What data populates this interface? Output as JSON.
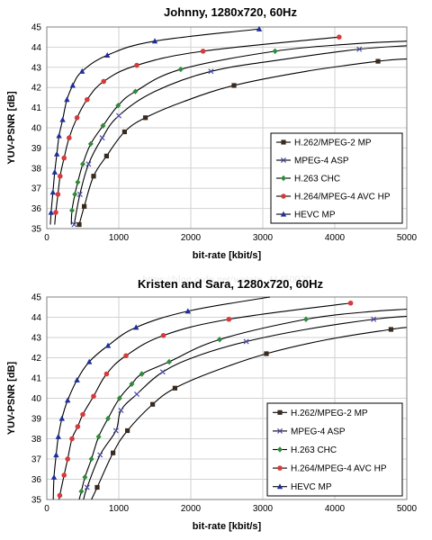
{
  "watermark": "https://blog.csdn.net/weixin_41450020",
  "chart_data": [
    {
      "type": "line",
      "title": "Johnny, 1280x720, 60Hz",
      "xlabel": "bit-rate [kbit/s]",
      "ylabel": "YUV-PSNR [dB]",
      "xlim": [
        0,
        5000
      ],
      "ylim": [
        35,
        45
      ],
      "xticks": [
        "0",
        "1000",
        "2000",
        "3000",
        "4000",
        "5000"
      ],
      "yticks": [
        "35",
        "36",
        "37",
        "38",
        "39",
        "40",
        "41",
        "42",
        "43",
        "44",
        "45"
      ],
      "grid": true,
      "legend_position": "bottom-right",
      "series": [
        {
          "name": "H.262/MPEG-2 MP",
          "color": "#3a2a1e",
          "marker": "square",
          "points": [
            [
              450,
              35.2
            ],
            [
              520,
              36.1
            ],
            [
              650,
              37.6
            ],
            [
              830,
              38.6
            ],
            [
              1080,
              39.8
            ],
            [
              1370,
              40.5
            ],
            [
              2600,
              42.1
            ],
            [
              4600,
              43.3
            ]
          ],
          "curve": [
            [
              450,
              35.2
            ],
            [
              520,
              36.1
            ],
            [
              650,
              37.6
            ],
            [
              830,
              38.6
            ],
            [
              1080,
              39.8
            ],
            [
              1370,
              40.5
            ],
            [
              1900,
              41.3
            ],
            [
              2600,
              42.1
            ],
            [
              3600,
              42.8
            ],
            [
              4600,
              43.3
            ],
            [
              5000,
              43.42
            ]
          ]
        },
        {
          "name": "MPEG-4 ASP",
          "color": "#4a4aa8",
          "marker": "x",
          "points": [
            [
              380,
              35.2
            ],
            [
              460,
              36.7
            ],
            [
              580,
              38.2
            ],
            [
              770,
              39.5
            ],
            [
              1000,
              40.6
            ],
            [
              2280,
              42.8
            ],
            [
              4340,
              43.9
            ]
          ],
          "curve": [
            [
              380,
              35.2
            ],
            [
              460,
              36.7
            ],
            [
              580,
              38.2
            ],
            [
              770,
              39.5
            ],
            [
              1000,
              40.6
            ],
            [
              1500,
              41.8
            ],
            [
              2280,
              42.8
            ],
            [
              3300,
              43.4
            ],
            [
              4340,
              43.9
            ],
            [
              5000,
              44.07
            ]
          ]
        },
        {
          "name": "H.263 CHC",
          "color": "#2f8a3a",
          "marker": "diamond",
          "points": [
            [
              350,
              35.9
            ],
            [
              390,
              36.7
            ],
            [
              430,
              37.3
            ],
            [
              500,
              38.2
            ],
            [
              610,
              39.2
            ],
            [
              780,
              40.1
            ],
            [
              990,
              41.1
            ],
            [
              1230,
              41.8
            ],
            [
              1860,
              42.9
            ],
            [
              3170,
              43.8
            ]
          ],
          "curve": [
            [
              340,
              35.2
            ],
            [
              350,
              35.9
            ],
            [
              390,
              36.7
            ],
            [
              430,
              37.3
            ],
            [
              500,
              38.2
            ],
            [
              610,
              39.2
            ],
            [
              780,
              40.1
            ],
            [
              990,
              41.1
            ],
            [
              1230,
              41.8
            ],
            [
              1860,
              42.9
            ],
            [
              3170,
              43.8
            ],
            [
              4200,
              44.15
            ],
            [
              5000,
              44.3
            ]
          ]
        },
        {
          "name": "H.264/MPEG-4 AVC HP",
          "color": "#d63a3a",
          "marker": "circle",
          "points": [
            [
              125,
              35.8
            ],
            [
              155,
              36.7
            ],
            [
              185,
              37.6
            ],
            [
              240,
              38.5
            ],
            [
              310,
              39.5
            ],
            [
              420,
              40.5
            ],
            [
              560,
              41.4
            ],
            [
              790,
              42.3
            ],
            [
              1250,
              43.1
            ],
            [
              2170,
              43.8
            ],
            [
              4060,
              44.5
            ]
          ],
          "curve": [
            [
              110,
              35.2
            ],
            [
              125,
              35.8
            ],
            [
              155,
              36.7
            ],
            [
              185,
              37.6
            ],
            [
              240,
              38.5
            ],
            [
              310,
              39.5
            ],
            [
              420,
              40.5
            ],
            [
              560,
              41.4
            ],
            [
              790,
              42.3
            ],
            [
              1250,
              43.1
            ],
            [
              2170,
              43.8
            ],
            [
              4060,
              44.5
            ]
          ]
        },
        {
          "name": "HEVC MP",
          "color": "#1f2f9a",
          "marker": "triangle",
          "points": [
            [
              60,
              35.8
            ],
            [
              85,
              36.8
            ],
            [
              110,
              37.8
            ],
            [
              140,
              38.7
            ],
            [
              170,
              39.6
            ],
            [
              220,
              40.4
            ],
            [
              280,
              41.4
            ],
            [
              360,
              42.1
            ],
            [
              490,
              42.8
            ],
            [
              840,
              43.6
            ],
            [
              1500,
              44.3
            ],
            [
              2950,
              44.9
            ]
          ],
          "curve": [
            [
              50,
              35.2
            ],
            [
              60,
              35.8
            ],
            [
              85,
              36.8
            ],
            [
              110,
              37.8
            ],
            [
              140,
              38.7
            ],
            [
              170,
              39.6
            ],
            [
              220,
              40.4
            ],
            [
              280,
              41.4
            ],
            [
              360,
              42.1
            ],
            [
              490,
              42.8
            ],
            [
              840,
              43.6
            ],
            [
              1500,
              44.3
            ],
            [
              2950,
              44.9
            ]
          ]
        }
      ]
    },
    {
      "type": "line",
      "title": "Kristen and Sara, 1280x720, 60Hz",
      "xlabel": "bit-rate [kbit/s]",
      "ylabel": "YUV-PSNR [dB]",
      "xlim": [
        0,
        5000
      ],
      "ylim": [
        35,
        45
      ],
      "xticks": [
        "0",
        "1000",
        "2000",
        "3000",
        "4000",
        "5000"
      ],
      "yticks": [
        "35",
        "36",
        "37",
        "38",
        "39",
        "40",
        "41",
        "42",
        "43",
        "44",
        "45"
      ],
      "grid": true,
      "legend_position": "bottom-right",
      "series": [
        {
          "name": "H.262/MPEG-2 MP",
          "color": "#3a2a1e",
          "marker": "square",
          "points": [
            [
              700,
              35.6
            ],
            [
              920,
              37.3
            ],
            [
              1120,
              38.4
            ],
            [
              1470,
              39.7
            ],
            [
              1780,
              40.5
            ],
            [
              3050,
              42.2
            ],
            [
              4780,
              43.4
            ]
          ],
          "curve": [
            [
              620,
              35.0
            ],
            [
              700,
              35.6
            ],
            [
              920,
              37.3
            ],
            [
              1120,
              38.4
            ],
            [
              1470,
              39.7
            ],
            [
              1780,
              40.5
            ],
            [
              2300,
              41.3
            ],
            [
              3050,
              42.2
            ],
            [
              3900,
              42.9
            ],
            [
              4780,
              43.4
            ],
            [
              5000,
              43.5
            ]
          ]
        },
        {
          "name": "MPEG-4 ASP",
          "color": "#4a4aa8",
          "marker": "x",
          "points": [
            [
              560,
              35.6
            ],
            [
              740,
              37.2
            ],
            [
              960,
              38.4
            ],
            [
              1030,
              39.4
            ],
            [
              1250,
              40.2
            ],
            [
              1610,
              41.3
            ],
            [
              2770,
              42.8
            ],
            [
              4540,
              43.9
            ]
          ],
          "curve": [
            [
              510,
              35.0
            ],
            [
              560,
              35.6
            ],
            [
              740,
              37.2
            ],
            [
              960,
              38.4
            ],
            [
              1030,
              39.4
            ],
            [
              1250,
              40.2
            ],
            [
              1610,
              41.3
            ],
            [
              2100,
              42.1
            ],
            [
              2770,
              42.8
            ],
            [
              3600,
              43.4
            ],
            [
              4540,
              43.9
            ],
            [
              5000,
              44.05
            ]
          ]
        },
        {
          "name": "H.263 CHC",
          "color": "#2f8a3a",
          "marker": "diamond",
          "points": [
            [
              480,
              35.4
            ],
            [
              530,
              36.1
            ],
            [
              620,
              37.0
            ],
            [
              720,
              38.1
            ],
            [
              850,
              39.0
            ],
            [
              1010,
              40.0
            ],
            [
              1180,
              40.7
            ],
            [
              1320,
              41.2
            ],
            [
              1700,
              41.8
            ],
            [
              2400,
              42.9
            ],
            [
              3600,
              43.9
            ]
          ],
          "curve": [
            [
              450,
              35.0
            ],
            [
              480,
              35.4
            ],
            [
              530,
              36.1
            ],
            [
              620,
              37.0
            ],
            [
              720,
              38.1
            ],
            [
              850,
              39.0
            ],
            [
              1010,
              40.0
            ],
            [
              1180,
              40.7
            ],
            [
              1320,
              41.2
            ],
            [
              1700,
              41.8
            ],
            [
              2400,
              42.9
            ],
            [
              3600,
              43.9
            ],
            [
              4400,
              44.25
            ],
            [
              5000,
              44.4
            ]
          ]
        },
        {
          "name": "H.264/MPEG-4 AVC HP",
          "color": "#d63a3a",
          "marker": "circle",
          "points": [
            [
              180,
              35.2
            ],
            [
              240,
              36.2
            ],
            [
              290,
              37.0
            ],
            [
              350,
              38.0
            ],
            [
              430,
              38.6
            ],
            [
              500,
              39.2
            ],
            [
              650,
              40.1
            ],
            [
              830,
              41.2
            ],
            [
              1100,
              42.1
            ],
            [
              1620,
              43.1
            ],
            [
              2530,
              43.9
            ],
            [
              4220,
              44.7
            ]
          ],
          "curve": [
            [
              170,
              35.0
            ],
            [
              180,
              35.2
            ],
            [
              240,
              36.2
            ],
            [
              290,
              37.0
            ],
            [
              350,
              38.0
            ],
            [
              430,
              38.6
            ],
            [
              500,
              39.2
            ],
            [
              650,
              40.1
            ],
            [
              830,
              41.2
            ],
            [
              1100,
              42.1
            ],
            [
              1620,
              43.1
            ],
            [
              2530,
              43.9
            ],
            [
              4220,
              44.7
            ]
          ]
        },
        {
          "name": "HEVC MP",
          "color": "#1f2f9a",
          "marker": "triangle",
          "points": [
            [
              100,
              36.1
            ],
            [
              130,
              37.2
            ],
            [
              160,
              38.1
            ],
            [
              210,
              39.0
            ],
            [
              290,
              39.9
            ],
            [
              420,
              40.9
            ],
            [
              590,
              41.8
            ],
            [
              850,
              42.6
            ],
            [
              1240,
              43.5
            ],
            [
              1960,
              44.3
            ]
          ],
          "curve": [
            [
              90,
              35.0
            ],
            [
              100,
              36.1
            ],
            [
              130,
              37.2
            ],
            [
              160,
              38.1
            ],
            [
              210,
              39.0
            ],
            [
              290,
              39.9
            ],
            [
              420,
              40.9
            ],
            [
              590,
              41.8
            ],
            [
              850,
              42.6
            ],
            [
              1240,
              43.5
            ],
            [
              1960,
              44.3
            ],
            [
              3100,
              45.0
            ]
          ]
        }
      ]
    }
  ]
}
